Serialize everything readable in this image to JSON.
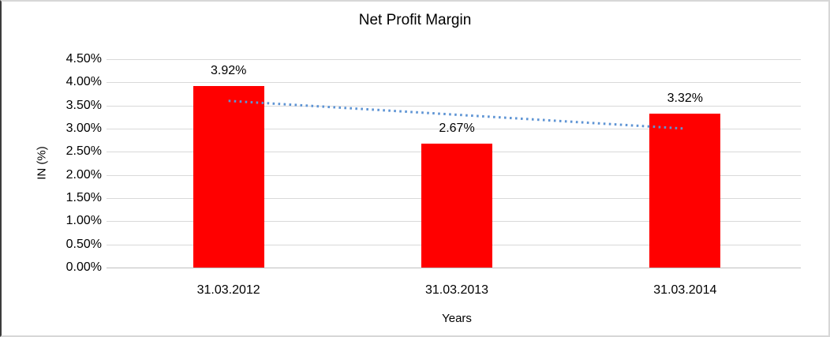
{
  "chart_data": {
    "type": "bar",
    "title": "Net Profit Margin",
    "xlabel": "Years",
    "ylabel": "IN (%)",
    "categories": [
      "31.03.2012",
      "31.03.2013",
      "31.03.2014"
    ],
    "values": [
      3.92,
      2.67,
      3.32
    ],
    "value_labels": [
      "3.92%",
      "2.67%",
      "3.32%"
    ],
    "ylim": [
      0,
      4.5
    ],
    "ytick_step": 0.5,
    "ytick_labels": [
      "0.00%",
      "0.50%",
      "1.00%",
      "1.50%",
      "2.00%",
      "2.50%",
      "3.00%",
      "3.50%",
      "4.00%",
      "4.50%"
    ],
    "grid": true,
    "legend": "none",
    "bar_color": "#ff0000",
    "gridline_color": "#d9d9d9",
    "axis_line_color": "#bfbfbf",
    "text_color": "#000000",
    "trendline": {
      "type": "linear",
      "style": "dotted",
      "color": "#5e94d4",
      "start_value": 3.6,
      "end_value": 3.0
    }
  }
}
